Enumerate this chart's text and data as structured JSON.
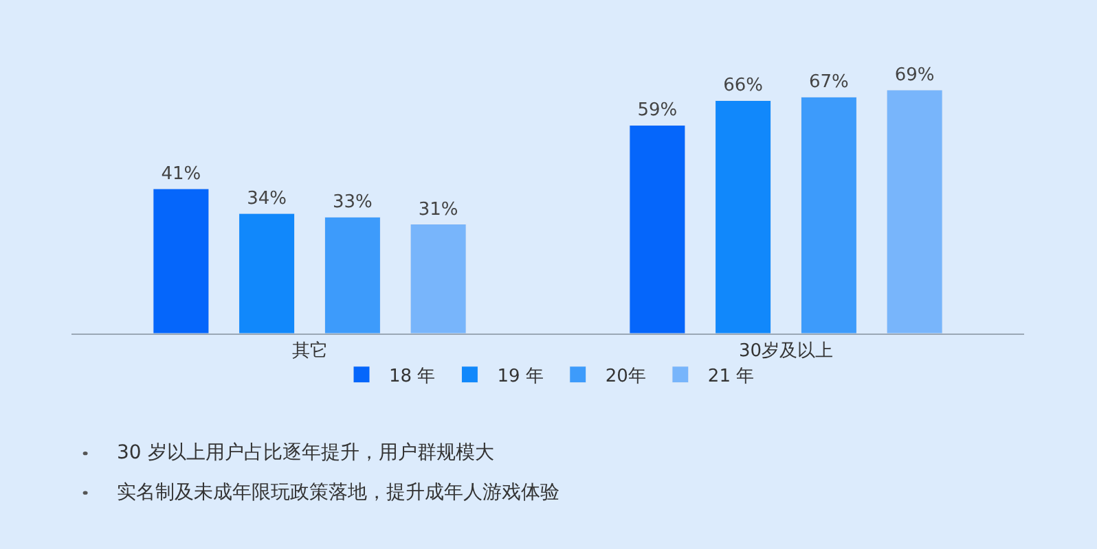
{
  "chart_data": {
    "type": "bar",
    "categories": [
      "其它",
      "30岁及以上"
    ],
    "series": [
      {
        "name": "18 年",
        "color": "#0566fb",
        "values": [
          41,
          59
        ],
        "value_labels": [
          "41%",
          "59%"
        ]
      },
      {
        "name": "19 年",
        "color": "#1188fb",
        "values": [
          34,
          66
        ],
        "value_labels": [
          "34%",
          "66%"
        ]
      },
      {
        "name": "20年",
        "color": "#3d9bfb",
        "values": [
          33,
          67
        ],
        "value_labels": [
          "33%",
          "67%"
        ]
      },
      {
        "name": "21 年",
        "color": "#78b5fb",
        "values": [
          31,
          69
        ],
        "value_labels": [
          "31%",
          "69%"
        ]
      }
    ],
    "legend": "bottom",
    "annotations": [
      "30 岁以上用户占比逐年提升，用户群规模大",
      "实名制及未成年限玩政策落地，提升成年人游戏体验"
    ]
  }
}
